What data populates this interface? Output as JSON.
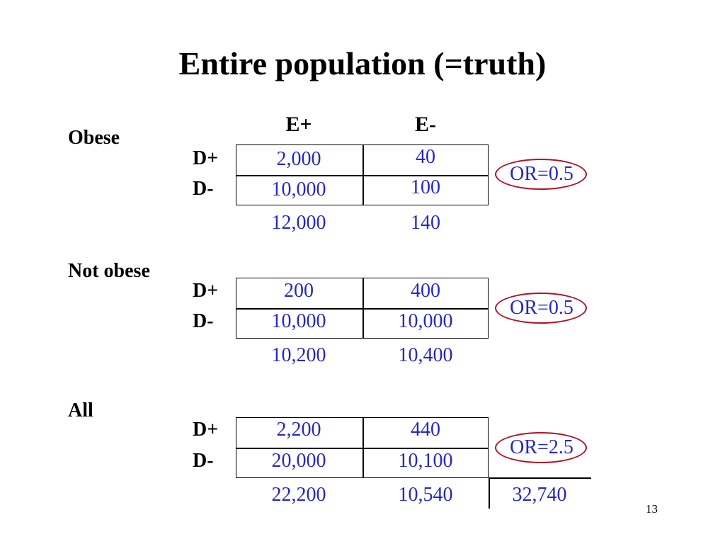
{
  "title": "Entire population (=truth)",
  "columns": [
    "E+",
    "E-"
  ],
  "row_labels": [
    "D+",
    "D-"
  ],
  "groups": [
    {
      "label": "Obese",
      "cells": [
        [
          "2,000",
          "40"
        ],
        [
          "10,000",
          "100"
        ]
      ],
      "totals": [
        "12,000",
        "140"
      ],
      "odds_ratio": "OR=0.5"
    },
    {
      "label": "Not obese",
      "cells": [
        [
          "200",
          "400"
        ],
        [
          "10,000",
          "10,000"
        ]
      ],
      "totals": [
        "10,200",
        "10,400"
      ],
      "odds_ratio": "OR=0.5"
    },
    {
      "label": "All",
      "cells": [
        [
          "2,200",
          "440"
        ],
        [
          "20,000",
          "10,100"
        ]
      ],
      "totals": [
        "22,200",
        "10,540"
      ],
      "odds_ratio": "OR=2.5"
    }
  ],
  "grand_total": "32,740",
  "page_number": "13",
  "colors": {
    "values": "#2626c8",
    "or_ring": "#b11226",
    "text": "#000000"
  }
}
